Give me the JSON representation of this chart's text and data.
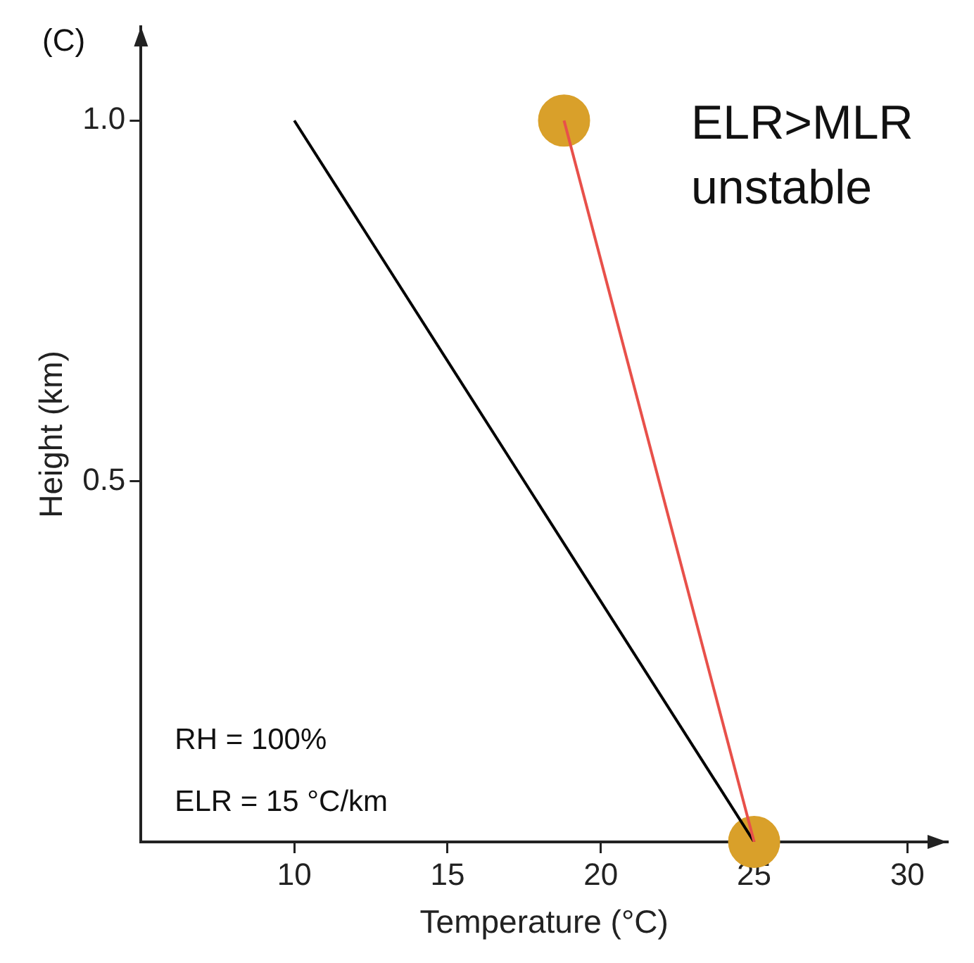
{
  "chart_data": {
    "type": "line",
    "xlabel": "Temperature (°C)",
    "ylabel": "Height (km)",
    "annotations": [
      "(C)",
      "ELR>MLR",
      "unstable",
      "RH = 100%",
      "ELR = 15 °C/km"
    ],
    "series": [
      {
        "type": "scatter",
        "color": "#d9a02a",
        "marker": "circle",
        "x": [
          18.8,
          25
        ],
        "values": [
          1.0,
          0
        ]
      },
      {
        "color": "#000000",
        "marker": "none",
        "x": [
          10,
          25
        ],
        "values": [
          1.0,
          0
        ]
      },
      {
        "color": "#e8504a",
        "marker": "none",
        "x": [
          18.8,
          25
        ],
        "values": [
          1.0,
          0
        ]
      }
    ],
    "xlim": [
      5,
      31.3
    ],
    "ylim": [
      0,
      1.13
    ],
    "xticks": [
      10,
      15,
      20,
      25,
      30
    ],
    "yticks": [
      {
        "value": 0.5,
        "label": "0.5"
      },
      {
        "value": 1,
        "label": "1.0"
      }
    ],
    "grid": false,
    "legend": false
  }
}
